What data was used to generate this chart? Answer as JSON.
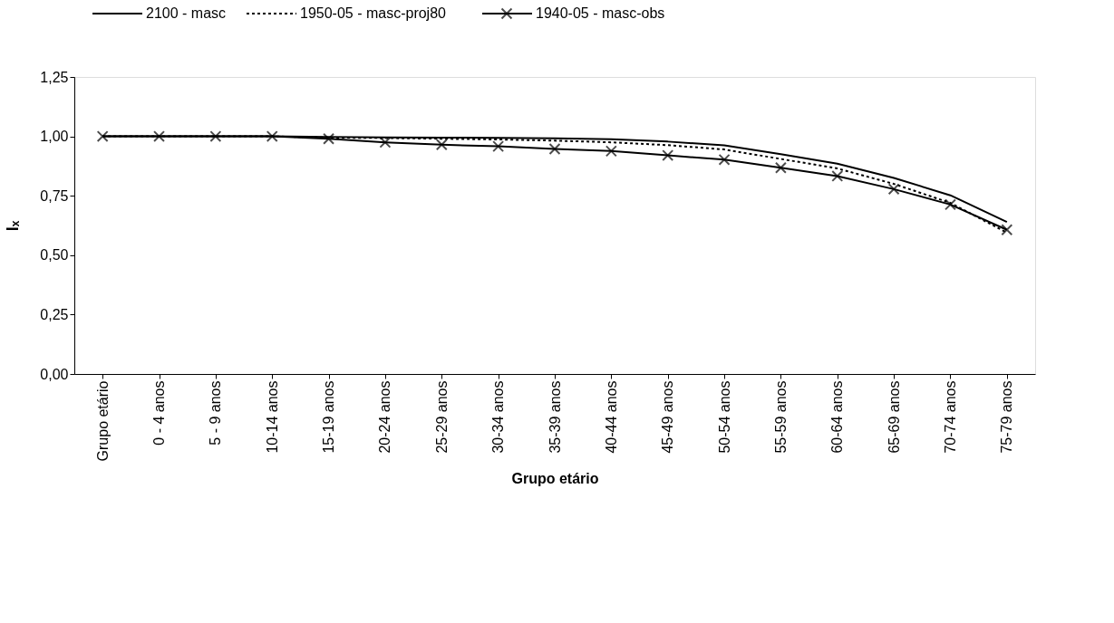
{
  "chart_data": {
    "type": "line",
    "xlabel": "Grupo etário",
    "ylabel": "lₓ",
    "categories": [
      "Grupo etário",
      "0 - 4 anos",
      "5 - 9 anos",
      "10-14 anos",
      "15-19 anos",
      "20-24 anos",
      "25-29 anos",
      "30-34 anos",
      "35-39 anos",
      "40-44 anos",
      "45-49 anos",
      "50-54 anos",
      "55-59 anos",
      "60-64 anos",
      "65-69 anos",
      "70-74 anos",
      "75-79 anos"
    ],
    "series": [
      {
        "name": "2100 - masc",
        "color": "#000000",
        "line_style": "solid",
        "marker": "none",
        "values": [
          1,
          1,
          1,
          1,
          0.998,
          0.996,
          0.995,
          0.994,
          0.992,
          0.988,
          0.978,
          0.962,
          0.925,
          0.885,
          0.825,
          0.752,
          0.64
        ]
      },
      {
        "name": "1950-05 - masc-proj80",
        "color": "#000000",
        "line_style": "dotted",
        "marker": "none",
        "values": [
          1,
          1,
          1,
          1,
          0.995,
          0.993,
          0.99,
          0.987,
          0.982,
          0.975,
          0.963,
          0.945,
          0.905,
          0.865,
          0.8,
          0.72,
          0.595
        ]
      },
      {
        "name": "1940-05 - masc-obs",
        "color": "#000000",
        "line_style": "solid",
        "marker": "cross",
        "values": [
          1,
          1,
          1,
          1,
          0.99,
          0.975,
          0.965,
          0.958,
          0.947,
          0.938,
          0.92,
          0.902,
          0.868,
          0.833,
          0.778,
          0.713,
          0.607
        ]
      }
    ],
    "ylim": [
      0,
      1.25
    ],
    "yticks": [
      {
        "value": 0,
        "label": "0,00"
      },
      {
        "value": 0.25,
        "label": "0,25"
      },
      {
        "value": 0.5,
        "label": "0,50"
      },
      {
        "value": 0.75,
        "label": "0,75"
      },
      {
        "value": 1,
        "label": "1,00"
      },
      {
        "value": 1.25,
        "label": "1,25"
      }
    ],
    "grid": false,
    "legend": "top"
  }
}
